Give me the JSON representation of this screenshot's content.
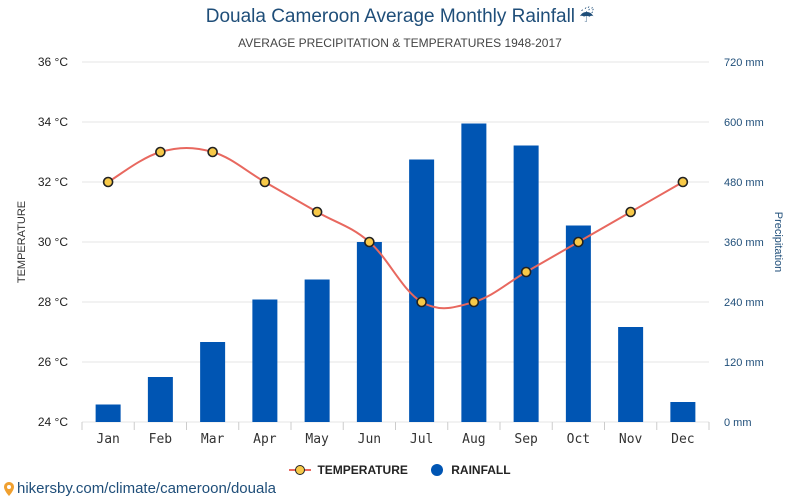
{
  "header": {
    "title": "Douala Cameroon Average Monthly Rainfall",
    "title_icon": "umbrella-rain-icon",
    "subtitle": "AVERAGE PRECIPITATION & TEMPERATURES 1948-2017"
  },
  "legend": {
    "temperature_label": "TEMPERATURE",
    "rainfall_label": "RAINFALL"
  },
  "footer": {
    "source_text": "hikersby.com/climate/cameroon/douala",
    "icon": "location-pin-icon"
  },
  "colors": {
    "bar": "#0055b3",
    "line": "#e8685f",
    "marker_fill": "#f7c948",
    "title": "#1f4e79",
    "right_axis": "#1f4e79",
    "grid": "#e6e6e6"
  },
  "chart_data": {
    "type": "bar",
    "title": "Douala Cameroon Average Monthly Rainfall",
    "subtitle": "AVERAGE PRECIPITATION & TEMPERATURES 1948-2017",
    "categories": [
      "Jan",
      "Feb",
      "Mar",
      "Apr",
      "May",
      "Jun",
      "Jul",
      "Aug",
      "Sep",
      "Oct",
      "Nov",
      "Dec"
    ],
    "series": [
      {
        "name": "RAINFALL",
        "type": "bar",
        "axis": "right",
        "unit": "mm",
        "values": [
          35,
          90,
          160,
          245,
          285,
          360,
          525,
          597,
          553,
          393,
          190,
          40
        ]
      },
      {
        "name": "TEMPERATURE",
        "type": "line",
        "axis": "left",
        "unit": "°C",
        "values": [
          32,
          33,
          33,
          32,
          31,
          30,
          28,
          28,
          29,
          30,
          31,
          32
        ]
      }
    ],
    "y_left": {
      "label": "TEMPERATURE",
      "range": [
        24,
        36
      ],
      "ticks": [
        "24 °C",
        "26 °C",
        "28 °C",
        "30 °C",
        "32 °C",
        "34 °C",
        "36 °C"
      ]
    },
    "y_right": {
      "label": "Precipitation",
      "range": [
        0,
        720
      ],
      "ticks": [
        "0 mm",
        "120 mm",
        "240 mm",
        "360 mm",
        "480 mm",
        "600 mm",
        "720 mm"
      ]
    },
    "grid": true,
    "legend_position": "bottom-center"
  }
}
